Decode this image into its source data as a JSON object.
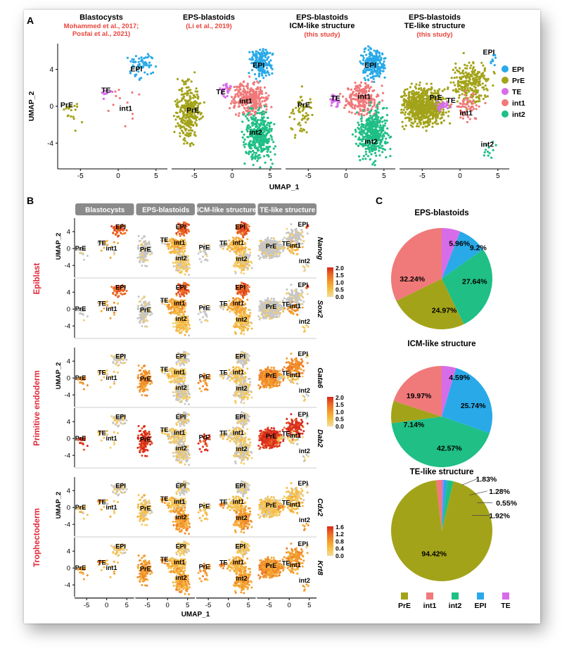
{
  "panel_letters": [
    "A",
    "B",
    "C"
  ],
  "cluster_colors": {
    "EPI": "#29a9e8",
    "PrE": "#a3a31a",
    "TE": "#d76ce9",
    "int1": "#f0797a",
    "int2": "#1fbf86"
  },
  "panelA": {
    "titles": [
      {
        "lines": [
          "Blastocysts"
        ],
        "ref": [
          "Mohammed et al., 2017;",
          "Posfai et al., 2021)"
        ]
      },
      {
        "lines": [
          "EPS-blastoids"
        ],
        "ref": [
          "(Li et al., 2019)"
        ]
      },
      {
        "lines": [
          "EPS-blastoids",
          "ICM-like structure"
        ],
        "ref": [
          "(this study)"
        ]
      },
      {
        "lines": [
          "EPS-blastoids",
          "TE-like structure"
        ],
        "ref": [
          "(this study)"
        ]
      }
    ],
    "ylabel": "UMAP_2",
    "xlabel": "UMAP_1",
    "yticks": [
      "4",
      "0",
      "-4"
    ],
    "xticks": [
      "-5",
      "0",
      "5"
    ],
    "legend": [
      {
        "key": "EPI",
        "label": "EPI"
      },
      {
        "key": "PrE",
        "label": "PrE"
      },
      {
        "key": "TE",
        "label": "TE"
      },
      {
        "key": "int1",
        "label": "int1"
      },
      {
        "key": "int2",
        "label": "int2"
      }
    ],
    "labels": [
      [
        {
          "t": "EPI",
          "c": "EPI"
        },
        {
          "t": "PrE",
          "c": "PrE"
        },
        {
          "t": "TE",
          "c": "TE"
        },
        {
          "t": "int1",
          "c": "int1"
        }
      ],
      [
        {
          "t": "EPI",
          "c": "EPI"
        },
        {
          "t": "PrE",
          "c": "PrE"
        },
        {
          "t": "TE",
          "c": "TE"
        },
        {
          "t": "int1",
          "c": "int1"
        },
        {
          "t": "int2",
          "c": "int2"
        }
      ],
      [
        {
          "t": "EPI",
          "c": "EPI"
        },
        {
          "t": "PrE",
          "c": "PrE"
        },
        {
          "t": "TE",
          "c": "TE"
        },
        {
          "t": "int1",
          "c": "int1"
        },
        {
          "t": "int2",
          "c": "int2"
        }
      ],
      [
        {
          "t": "EPI",
          "c": "EPI"
        },
        {
          "t": "PrE",
          "c": "PrE"
        },
        {
          "t": "TE",
          "c": "TE"
        },
        {
          "t": "int1",
          "c": "int1"
        },
        {
          "t": "int2",
          "c": "int2"
        }
      ]
    ]
  },
  "panelB": {
    "headers": [
      "Blastocysts",
      "EPS-blastoids",
      "ICM-like structure",
      "TE-like structure"
    ],
    "groups": [
      {
        "label": "Epiblast",
        "genes": [
          "Nanog",
          "Sox2"
        ],
        "scale": [
          "2.0",
          "1.5",
          "1.0",
          "0.5",
          "0.0"
        ]
      },
      {
        "label": "Primitive endoderm",
        "genes": [
          "Gata6",
          "Dab2"
        ],
        "scale": [
          "2.0",
          "1.5",
          "1.0",
          "0.5",
          "0.0"
        ]
      },
      {
        "label": "Trophectoderm",
        "genes": [
          "Cdx2",
          "Krt8"
        ],
        "scale": [
          "1.6",
          "1.2",
          "0.8",
          "0.4",
          "0.0"
        ]
      }
    ],
    "ylabel": "UMAP_2",
    "xlabel": "UMAP_1",
    "yticks": [
      "4",
      "0",
      "-4"
    ],
    "xticks": [
      "-5",
      "0",
      "5"
    ],
    "cluster_labels": [
      "EPI",
      "PrE",
      "TE",
      "int1",
      "int2"
    ]
  },
  "panelC": {
    "legend": [
      {
        "key": "PrE",
        "label": "PrE"
      },
      {
        "key": "int1",
        "label": "int1"
      },
      {
        "key": "int2",
        "label": "int2"
      },
      {
        "key": "EPI",
        "label": "EPI"
      },
      {
        "key": "TE",
        "label": "TE"
      }
    ]
  },
  "chart_data": [
    {
      "type": "pie",
      "title": "EPS-blastoids",
      "categories": [
        "TE",
        "EPI",
        "int2",
        "PrE",
        "int1"
      ],
      "values": [
        5.96,
        9.2,
        27.64,
        24.97,
        32.24
      ],
      "labels": [
        "5.96%",
        "9.2%",
        "27.64%",
        "24.97%",
        "32.24%"
      ]
    },
    {
      "type": "pie",
      "title": "ICM-like structure",
      "categories": [
        "TE",
        "EPI",
        "int2",
        "PrE",
        "int1"
      ],
      "values": [
        4.59,
        25.74,
        42.57,
        7.14,
        19.97
      ],
      "labels": [
        "4.59%",
        "25.74%",
        "42.57%",
        "7.14%",
        "19.97%"
      ]
    },
    {
      "type": "pie",
      "title": "TE-like structure",
      "categories": [
        "TE",
        "EPI",
        "int2",
        "PrE",
        "int1"
      ],
      "values": [
        0.55,
        1.28,
        1.92,
        94.42,
        1.83
      ],
      "labels": [
        "0.55%",
        "1.28%",
        "1.92%",
        "94.42%",
        "1.83%"
      ]
    }
  ]
}
